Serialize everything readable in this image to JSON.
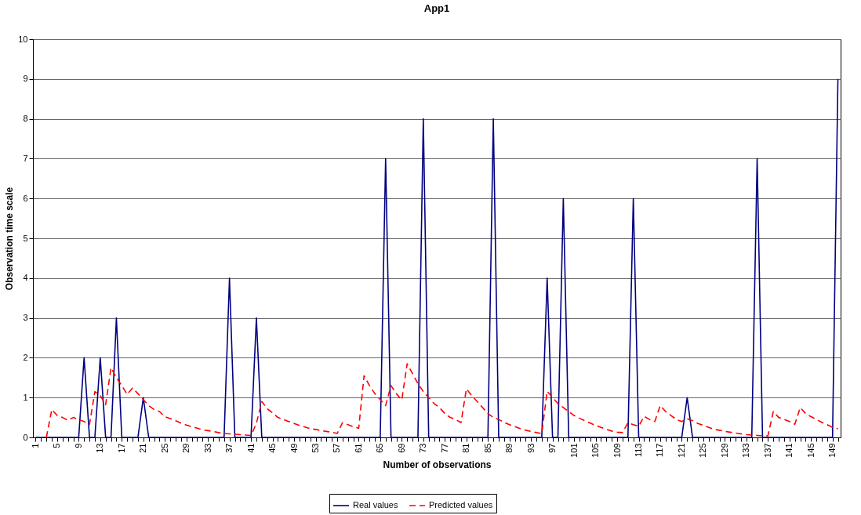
{
  "chart_data": {
    "type": "line",
    "title": "App1",
    "xlabel": "Number of observations",
    "ylabel": "Observation time scale",
    "categories": [
      "1",
      null,
      null,
      null,
      "5",
      null,
      null,
      null,
      "9",
      null,
      null,
      null,
      "13",
      null,
      null,
      null,
      "17",
      null,
      null,
      null,
      "21",
      null,
      null,
      null,
      "25",
      null,
      null,
      null,
      "29",
      null,
      null,
      null,
      "33",
      null,
      null,
      null,
      "37",
      null,
      null,
      null,
      "41",
      null,
      null,
      null,
      "45",
      null,
      null,
      null,
      "49",
      null,
      null,
      null,
      "53",
      null,
      null,
      null,
      "57",
      null,
      null,
      null,
      "61",
      null,
      null,
      null,
      "65",
      null,
      null,
      null,
      "69",
      null,
      null,
      null,
      "73",
      null,
      null,
      null,
      "77",
      null,
      null,
      null,
      "81",
      null,
      null,
      null,
      "85",
      null,
      null,
      null,
      "89",
      null,
      null,
      null,
      "93",
      null,
      null,
      null,
      "97",
      null,
      null,
      null,
      "101",
      null,
      null,
      null,
      "105",
      null,
      null,
      null,
      "109",
      null,
      null,
      null,
      "113",
      null,
      null,
      null,
      "117",
      null,
      null,
      null,
      "121",
      null,
      null,
      null,
      "125",
      null,
      null,
      null,
      "129",
      null,
      null,
      null,
      "133",
      null,
      null,
      null,
      "137",
      null,
      null,
      null,
      "141",
      null,
      null,
      null,
      "145",
      null,
      null,
      null,
      "149",
      null
    ],
    "series": [
      {
        "name": "Real values",
        "color": "#000080",
        "line_style": "solid",
        "values": [
          0,
          0,
          0,
          0,
          0,
          0,
          0,
          0,
          0,
          2,
          0,
          0,
          2,
          0,
          0,
          3,
          0,
          0,
          0,
          0,
          1,
          0,
          0,
          0,
          0,
          0,
          0,
          0,
          0,
          0,
          0,
          0,
          0,
          0,
          0,
          0,
          4,
          0,
          0,
          0,
          0,
          3,
          0,
          0,
          0,
          0,
          0,
          0,
          0,
          0,
          0,
          0,
          0,
          0,
          0,
          0,
          0,
          0,
          0,
          0,
          0,
          0,
          0,
          0,
          0,
          7,
          0,
          0,
          0,
          0,
          0,
          0,
          8,
          0,
          0,
          0,
          0,
          0,
          0,
          0,
          0,
          0,
          0,
          0,
          0,
          8,
          0,
          0,
          0,
          0,
          0,
          0,
          0,
          0,
          0,
          4,
          0,
          0,
          6,
          0,
          0,
          0,
          0,
          0,
          0,
          0,
          0,
          0,
          0,
          0,
          0,
          6,
          0,
          0,
          0,
          0,
          0,
          0,
          0,
          0,
          0,
          1,
          0,
          0,
          0,
          0,
          0,
          0,
          0,
          0,
          0,
          0,
          0,
          0,
          7,
          0,
          0,
          0,
          0,
          0,
          0,
          0,
          0,
          0,
          0,
          0,
          0,
          0,
          0,
          9
        ]
      },
      {
        "name": "Predicted values",
        "color": "#ff0000",
        "line_style": "dashed",
        "values": [
          null,
          null,
          0,
          0.7,
          0.55,
          0.5,
          0.43,
          0.5,
          0.45,
          0.4,
          0.32,
          1.15,
          1.05,
          0.82,
          1.75,
          1.5,
          1.3,
          1.08,
          1.24,
          1.1,
          0.95,
          0.8,
          0.7,
          0.65,
          0.52,
          0.47,
          0.42,
          0.36,
          0.31,
          0.27,
          0.23,
          0.19,
          0.17,
          0.15,
          0.12,
          0.1,
          0.09,
          0.08,
          0.07,
          0.06,
          0.05,
          0.35,
          0.9,
          0.72,
          0.62,
          0.5,
          0.45,
          0.4,
          0.35,
          0.3,
          0.26,
          0.22,
          0.2,
          0.17,
          0.15,
          0.13,
          0.1,
          0.37,
          0.32,
          0.27,
          0.23,
          1.55,
          1.3,
          1.1,
          0.95,
          0.8,
          1.3,
          1.1,
          0.94,
          1.85,
          1.6,
          1.35,
          1.15,
          1.0,
          0.85,
          0.75,
          0.6,
          0.5,
          0.45,
          0.37,
          1.22,
          1.05,
          0.9,
          0.75,
          0.6,
          0.5,
          0.45,
          0.38,
          0.32,
          0.27,
          0.22,
          0.18,
          0.15,
          0.12,
          0.1,
          1.16,
          1.0,
          0.85,
          0.75,
          0.65,
          0.55,
          0.48,
          0.42,
          0.36,
          0.3,
          0.25,
          0.2,
          0.16,
          0.13,
          0.12,
          0.37,
          0.32,
          0.28,
          0.53,
          0.45,
          0.4,
          0.8,
          0.65,
          0.55,
          0.45,
          0.4,
          0.47,
          0.42,
          0.35,
          0.3,
          0.25,
          0.2,
          0.18,
          0.15,
          0.13,
          0.11,
          0.09,
          0.07,
          0.06,
          0.05,
          0.04,
          0.04,
          0.65,
          0.5,
          0.45,
          0.4,
          0.33,
          0.75,
          0.6,
          0.52,
          0.45,
          0.38,
          0.32,
          0.25,
          0.22
        ]
      }
    ],
    "ylim": [
      0,
      10
    ],
    "yticks": [
      0,
      1,
      2,
      3,
      4,
      5,
      6,
      7,
      8,
      9,
      10
    ],
    "grid": "y",
    "legend": "bottom",
    "marker": "none"
  }
}
